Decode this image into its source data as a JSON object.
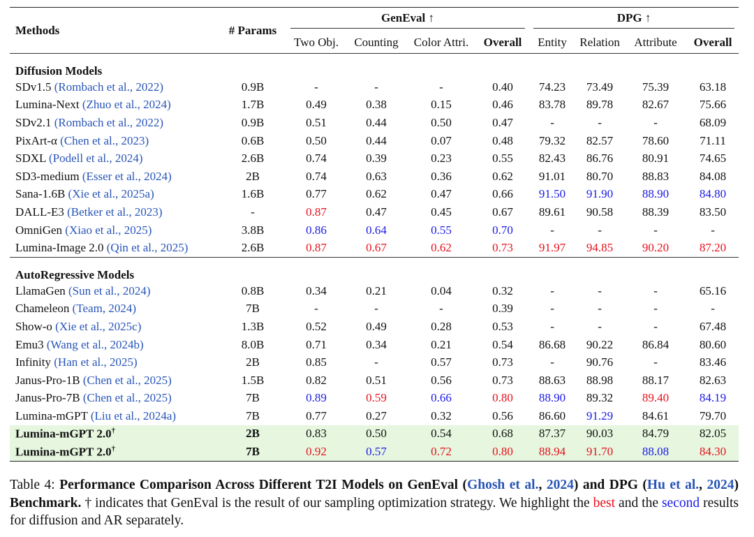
{
  "header": {
    "methods": "Methods",
    "params": "# Params",
    "geneval": "GenEval ↑",
    "dpg": "DPG ↑",
    "geneval_columns": [
      {
        "text": "Two Obj."
      },
      {
        "text": "Counting"
      },
      {
        "text": "Color Attri."
      },
      {
        "text": "Overall",
        "bold": true
      }
    ],
    "dpg_columns": [
      {
        "text": "Entity"
      },
      {
        "text": "Relation"
      },
      {
        "text": "Attribute"
      },
      {
        "text": "Overall",
        "bold": true
      }
    ]
  },
  "cite_color": "#2855b8",
  "sections": [
    {
      "title": "Diffusion Models",
      "rows": [
        {
          "method": "SDv1.5",
          "cite": "(Rombach et al., 2022)",
          "params": "0.9B",
          "values": [
            "-",
            "-",
            "-",
            "0.40",
            "74.23",
            "73.49",
            "75.39",
            "63.18"
          ]
        },
        {
          "method": "Lumina-Next",
          "cite": "(Zhuo et al., 2024)",
          "params": "1.7B",
          "values": [
            "0.49",
            "0.38",
            "0.15",
            "0.46",
            "83.78",
            "89.78",
            "82.67",
            "75.66"
          ]
        },
        {
          "method": "SDv2.1",
          "cite": "(Rombach et al., 2022)",
          "params": "0.9B",
          "values": [
            "0.51",
            "0.44",
            "0.50",
            "0.47",
            "-",
            "-",
            "-",
            "68.09"
          ]
        },
        {
          "method": "PixArt-α",
          "cite": "(Chen et al., 2023)",
          "params": "0.6B",
          "values": [
            "0.50",
            "0.44",
            "0.07",
            "0.48",
            "79.32",
            "82.57",
            "78.60",
            "71.11"
          ]
        },
        {
          "method": "SDXL",
          "cite": "(Podell et al., 2024)",
          "params": "2.6B",
          "values": [
            "0.74",
            "0.39",
            "0.23",
            "0.55",
            "82.43",
            "86.76",
            "80.91",
            "74.65"
          ]
        },
        {
          "method": "SD3-medium",
          "cite": "(Esser et al., 2024)",
          "params": "2B",
          "values": [
            "0.74",
            "0.63",
            "0.36",
            "0.62",
            "91.01",
            "80.70",
            "88.83",
            "84.08"
          ]
        },
        {
          "method": "Sana-1.6B",
          "cite": "(Xie et al., 2025a)",
          "params": "1.6B",
          "values": [
            "0.77",
            "0.62",
            "0.47",
            "0.66",
            {
              "text": "91.50",
              "color": "#1a1ae6"
            },
            {
              "text": "91.90",
              "color": "#1a1ae6"
            },
            {
              "text": "88.90",
              "color": "#1a1ae6"
            },
            {
              "text": "84.80",
              "color": "#1a1ae6"
            }
          ]
        },
        {
          "method": "DALL-E3",
          "cite": "(Betker et al., 2023)",
          "params": "-",
          "values": [
            {
              "text": "0.87",
              "color": "#e8101c"
            },
            "0.47",
            "0.45",
            "0.67",
            "89.61",
            "90.58",
            "88.39",
            "83.50"
          ]
        },
        {
          "method": "OmniGen",
          "cite": "(Xiao et al., 2025)",
          "params": "3.8B",
          "values": [
            {
              "text": "0.86",
              "color": "#1a1ae6"
            },
            {
              "text": "0.64",
              "color": "#1a1ae6"
            },
            {
              "text": "0.55",
              "color": "#1a1ae6"
            },
            {
              "text": "0.70",
              "color": "#1a1ae6"
            },
            "-",
            "-",
            "-",
            "-"
          ]
        },
        {
          "method": "Lumina-Image 2.0",
          "cite": "(Qin et al., 2025)",
          "params": "2.6B",
          "values": [
            {
              "text": "0.87",
              "color": "#e8101c"
            },
            {
              "text": "0.67",
              "color": "#e8101c"
            },
            {
              "text": "0.62",
              "color": "#e8101c"
            },
            {
              "text": "0.73",
              "color": "#e8101c"
            },
            {
              "text": "91.97",
              "color": "#e8101c"
            },
            {
              "text": "94.85",
              "color": "#e8101c"
            },
            {
              "text": "90.20",
              "color": "#e8101c"
            },
            {
              "text": "87.20",
              "color": "#e8101c"
            }
          ]
        }
      ]
    },
    {
      "title": "AutoRegressive Models",
      "rows": [
        {
          "method": "LlamaGen",
          "cite": "(Sun et al., 2024)",
          "params": "0.8B",
          "values": [
            "0.34",
            "0.21",
            "0.04",
            "0.32",
            "-",
            "-",
            "-",
            "65.16"
          ]
        },
        {
          "method": "Chameleon",
          "cite": "(Team, 2024)",
          "params": "7B",
          "values": [
            "-",
            "-",
            "-",
            "0.39",
            "-",
            "-",
            "-",
            "-"
          ]
        },
        {
          "method": "Show-o",
          "cite": "(Xie et al., 2025c)",
          "params": "1.3B",
          "values": [
            "0.52",
            "0.49",
            "0.28",
            "0.53",
            "-",
            "-",
            "-",
            "67.48"
          ]
        },
        {
          "method": "Emu3",
          "cite": "(Wang et al., 2024b)",
          "params": "8.0B",
          "values": [
            "0.71",
            "0.34",
            "0.21",
            "0.54",
            "86.68",
            "90.22",
            "86.84",
            "80.60"
          ]
        },
        {
          "method": "Infinity",
          "cite": "(Han et al., 2025)",
          "params": "2B",
          "values": [
            "0.85",
            "-",
            "0.57",
            "0.73",
            "-",
            "90.76",
            "-",
            "83.46"
          ]
        },
        {
          "method": "Janus-Pro-1B",
          "cite": "(Chen et al., 2025)",
          "params": "1.5B",
          "values": [
            "0.82",
            "0.51",
            "0.56",
            "0.73",
            "88.63",
            "88.98",
            "88.17",
            "82.63"
          ]
        },
        {
          "method": "Janus-Pro-7B",
          "cite": "(Chen et al., 2025)",
          "params": "7B",
          "values": [
            {
              "text": "0.89",
              "color": "#1a1ae6"
            },
            {
              "text": "0.59",
              "color": "#e8101c"
            },
            {
              "text": "0.66",
              "color": "#1a1ae6"
            },
            {
              "text": "0.80",
              "color": "#e8101c"
            },
            {
              "text": "88.90",
              "color": "#1a1ae6"
            },
            "89.32",
            {
              "text": "89.40",
              "color": "#e8101c"
            },
            {
              "text": "84.19",
              "color": "#1a1ae6"
            }
          ]
        },
        {
          "method": "Lumina-mGPT",
          "cite": "(Liu et al., 2024a)",
          "params": "7B",
          "values": [
            "0.77",
            "0.27",
            "0.32",
            "0.56",
            "86.60",
            {
              "text": "91.29",
              "color": "#1a1ae6"
            },
            "84.61",
            "79.70"
          ]
        },
        {
          "method": "Lumina-mGPT 2.0",
          "sup": "†",
          "bold": true,
          "background": "#e6f6df",
          "params": "2B",
          "values": [
            "0.83",
            "0.50",
            "0.54",
            "0.68",
            "87.37",
            "90.03",
            "84.79",
            "82.05"
          ]
        },
        {
          "method": "Lumina-mGPT 2.0",
          "sup": "†",
          "bold": true,
          "background": "#e6f6df",
          "params": "7B",
          "values": [
            {
              "text": "0.92",
              "color": "#e8101c"
            },
            {
              "text": "0.57",
              "color": "#1a1ae6"
            },
            {
              "text": "0.72",
              "color": "#e8101c"
            },
            {
              "text": "0.80",
              "color": "#e8101c"
            },
            {
              "text": "88.94",
              "color": "#e8101c"
            },
            {
              "text": "91.70",
              "color": "#e8101c"
            },
            {
              "text": "88.08",
              "color": "#1a1ae6"
            },
            {
              "text": "84.30",
              "color": "#e8101c"
            }
          ]
        }
      ]
    }
  ],
  "caption": [
    {
      "text": "Table 4: "
    },
    {
      "text": "Performance Comparison Across Different T2I Models on GenEval (",
      "bold": true
    },
    {
      "text": "Ghosh et al.",
      "bold": true,
      "color": "#2855b8"
    },
    {
      "text": ", ",
      "bold": true
    },
    {
      "text": "2024",
      "bold": true,
      "color": "#2855b8"
    },
    {
      "text": ") and DPG (",
      "bold": true
    },
    {
      "text": "Hu et al.",
      "bold": true,
      "color": "#2855b8"
    },
    {
      "text": ", ",
      "bold": true
    },
    {
      "text": "2024",
      "bold": true,
      "color": "#2855b8"
    },
    {
      "text": ") Benchmark.",
      "bold": true
    },
    {
      "text": " † indicates that GenEval is the result of our sampling optimization strategy. We highlight the "
    },
    {
      "text": "best",
      "color": "#e8101c"
    },
    {
      "text": " and the "
    },
    {
      "text": "second",
      "color": "#1a1ae6"
    },
    {
      "text": " results for diffusion and AR separately."
    }
  ]
}
